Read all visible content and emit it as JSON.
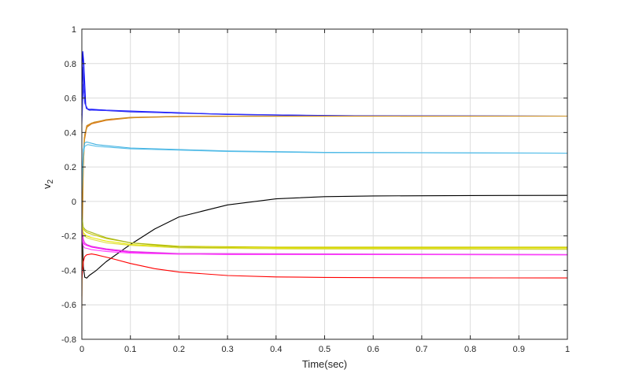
{
  "chart_data": {
    "type": "line",
    "title": "",
    "xlabel": "Time(sec)",
    "ylabel_main": "v",
    "ylabel_sub": "2",
    "xlim": [
      0,
      1
    ],
    "ylim": [
      -0.8,
      1
    ],
    "grid": true,
    "legend": "none",
    "x_ticks": [
      0,
      0.1,
      0.2,
      0.3,
      0.4,
      0.5,
      0.6,
      0.7,
      0.8,
      0.9,
      1
    ],
    "x_tick_labels": [
      "0",
      "0.1",
      "0.2",
      "0.3",
      "0.4",
      "0.5",
      "0.6",
      "0.7",
      "0.8",
      "0.9",
      "1"
    ],
    "y_ticks": [
      -0.8,
      -0.6,
      -0.4,
      -0.2,
      0,
      0.2,
      0.4,
      0.6,
      0.8,
      1
    ],
    "y_tick_labels": [
      "-0.8",
      "-0.6",
      "-0.4",
      "-0.2",
      "0",
      "0.2",
      "0.4",
      "0.6",
      "0.8",
      "1"
    ],
    "series": [
      {
        "color": "#0000ff",
        "x": [
          0,
          0.002,
          0.004,
          0.008,
          0.012,
          0.02,
          0.05,
          0.1,
          0.2,
          0.3,
          0.5,
          0.7,
          1
        ],
        "y": [
          0.5,
          0.87,
          0.8,
          0.56,
          0.535,
          0.535,
          0.53,
          0.525,
          0.515,
          0.505,
          0.497,
          0.495,
          0.495
        ]
      },
      {
        "color": "#1010e0",
        "x": [
          0,
          0.002,
          0.005,
          0.009,
          0.015,
          0.03,
          0.1,
          0.3,
          0.6,
          1
        ],
        "y": [
          0.5,
          0.78,
          0.62,
          0.54,
          0.53,
          0.53,
          0.52,
          0.505,
          0.496,
          0.495
        ]
      },
      {
        "color": "#3a3aff",
        "x": [
          0,
          0.003,
          0.006,
          0.01,
          0.02,
          0.06,
          0.2,
          0.5,
          1
        ],
        "y": [
          0.45,
          0.68,
          0.57,
          0.54,
          0.53,
          0.527,
          0.512,
          0.498,
          0.495
        ]
      },
      {
        "color": "#e07010",
        "x": [
          0,
          0.002,
          0.005,
          0.01,
          0.02,
          0.05,
          0.1,
          0.2,
          0.3,
          1
        ],
        "y": [
          -0.62,
          0.1,
          0.35,
          0.43,
          0.45,
          0.47,
          0.485,
          0.493,
          0.495,
          0.495
        ]
      },
      {
        "color": "#d08020",
        "x": [
          0,
          0.002,
          0.005,
          0.01,
          0.02,
          0.05,
          0.1,
          0.2,
          0.3,
          1
        ],
        "y": [
          -0.55,
          0.15,
          0.37,
          0.44,
          0.455,
          0.475,
          0.488,
          0.494,
          0.495,
          0.495
        ]
      },
      {
        "color": "#cc9020",
        "x": [
          0,
          0.003,
          0.006,
          0.012,
          0.025,
          0.06,
          0.12,
          0.25,
          1
        ],
        "y": [
          -0.4,
          0.2,
          0.39,
          0.44,
          0.46,
          0.478,
          0.489,
          0.494,
          0.495
        ]
      },
      {
        "color": "#40b0e0",
        "x": [
          0,
          0.003,
          0.006,
          0.01,
          0.03,
          0.1,
          0.3,
          0.5,
          1
        ],
        "y": [
          0.1,
          0.3,
          0.34,
          0.345,
          0.33,
          0.31,
          0.293,
          0.285,
          0.28
        ]
      },
      {
        "color": "#5ac0ea",
        "x": [
          0,
          0.003,
          0.006,
          0.012,
          0.03,
          0.1,
          0.3,
          0.5,
          1
        ],
        "y": [
          0.05,
          0.28,
          0.32,
          0.33,
          0.32,
          0.305,
          0.29,
          0.283,
          0.28
        ]
      },
      {
        "color": "#000000",
        "x": [
          0,
          0.003,
          0.006,
          0.01,
          0.015,
          0.03,
          0.05,
          0.1,
          0.15,
          0.2,
          0.3,
          0.4,
          0.5,
          0.6,
          0.8,
          1
        ],
        "y": [
          -0.1,
          -0.38,
          -0.44,
          -0.445,
          -0.43,
          -0.4,
          -0.35,
          -0.25,
          -0.16,
          -0.09,
          -0.02,
          0.015,
          0.028,
          0.032,
          0.034,
          0.035
        ]
      },
      {
        "color": "#ff0000",
        "x": [
          0,
          0.003,
          0.006,
          0.01,
          0.02,
          0.03,
          0.06,
          0.1,
          0.15,
          0.2,
          0.3,
          0.4,
          0.5,
          0.7,
          1
        ],
        "y": [
          -0.45,
          -0.35,
          -0.32,
          -0.31,
          -0.305,
          -0.31,
          -0.33,
          -0.36,
          -0.39,
          -0.41,
          -0.43,
          -0.438,
          -0.441,
          -0.443,
          -0.444
        ]
      },
      {
        "color": "#ff00ff",
        "x": [
          0,
          0.003,
          0.006,
          0.01,
          0.02,
          0.05,
          0.1,
          0.2,
          0.3,
          1
        ],
        "y": [
          -0.2,
          -0.24,
          -0.25,
          -0.255,
          -0.265,
          -0.28,
          -0.295,
          -0.305,
          -0.308,
          -0.31
        ]
      },
      {
        "color": "#e040e0",
        "x": [
          0,
          0.003,
          0.006,
          0.01,
          0.02,
          0.05,
          0.1,
          0.2,
          1
        ],
        "y": [
          -0.15,
          -0.22,
          -0.24,
          -0.25,
          -0.26,
          -0.275,
          -0.29,
          -0.302,
          -0.308
        ]
      },
      {
        "color": "#c8c800",
        "x": [
          0,
          0.003,
          0.006,
          0.01,
          0.02,
          0.05,
          0.1,
          0.2,
          0.4,
          1
        ],
        "y": [
          -0.1,
          -0.16,
          -0.17,
          -0.18,
          -0.19,
          -0.215,
          -0.24,
          -0.26,
          -0.265,
          -0.265
        ]
      },
      {
        "color": "#e6e600",
        "x": [
          0,
          0.003,
          0.006,
          0.01,
          0.02,
          0.05,
          0.1,
          0.2,
          0.4,
          1
        ],
        "y": [
          -0.12,
          -0.18,
          -0.19,
          -0.2,
          -0.21,
          -0.23,
          -0.25,
          -0.265,
          -0.27,
          -0.27
        ]
      },
      {
        "color": "#a8b820",
        "x": [
          0,
          0.003,
          0.006,
          0.01,
          0.02,
          0.05,
          0.1,
          0.2,
          0.4,
          1
        ],
        "y": [
          -0.08,
          -0.15,
          -0.16,
          -0.17,
          -0.18,
          -0.21,
          -0.24,
          -0.265,
          -0.275,
          -0.278
        ]
      },
      {
        "color": "#dede40",
        "x": [
          0,
          0.003,
          0.006,
          0.01,
          0.02,
          0.05,
          0.1,
          0.2,
          0.4,
          1
        ],
        "y": [
          -0.1,
          -0.19,
          -0.2,
          -0.21,
          -0.22,
          -0.24,
          -0.255,
          -0.27,
          -0.275,
          -0.276
        ]
      },
      {
        "color": "#ff40ff",
        "x": [
          0,
          0.003,
          0.006,
          0.01,
          0.02,
          0.05,
          0.1,
          0.2,
          1
        ],
        "y": [
          -0.2,
          -0.26,
          -0.27,
          -0.272,
          -0.28,
          -0.29,
          -0.3,
          -0.306,
          -0.31
        ]
      }
    ]
  }
}
